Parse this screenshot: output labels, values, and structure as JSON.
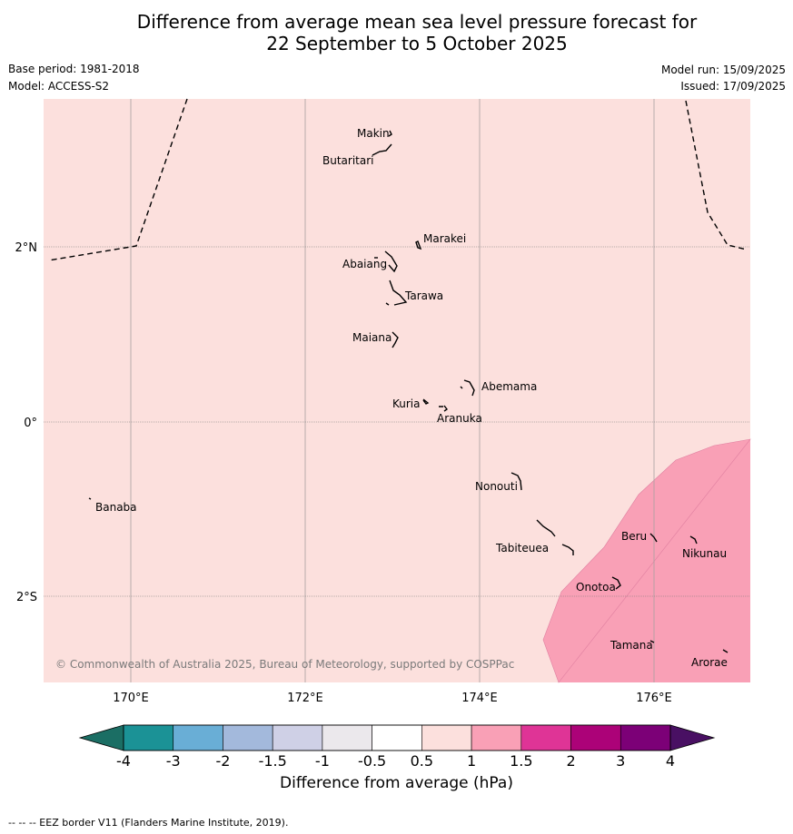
{
  "title": {
    "line1": "Difference from average mean sea level pressure forecast for",
    "line2": "22 September to 5 October 2025"
  },
  "meta": {
    "base_period": "Base period: 1981-2018",
    "model": "Model: ACCESS-S2",
    "model_run": "Model run: 15/09/2025",
    "issued": "Issued: 17/09/2025"
  },
  "map": {
    "background_category": "0.5 to 1 hPa",
    "region_category": "1 to 1.5 hPa",
    "lat_labels": [
      "2°N",
      "0°",
      "2°S"
    ],
    "lon_labels": [
      "170°E",
      "172°E",
      "174°E",
      "176°E"
    ],
    "places": {
      "makin": "Makin",
      "butaritari": "Butaritari",
      "marakei": "Marakei",
      "abaiang": "Abaiang",
      "tarawa": "Tarawa",
      "maiana": "Maiana",
      "abemama": "Abemama",
      "kuria": "Kuria",
      "aranuka": "Aranuka",
      "nonouti": "Nonouti",
      "banaba": "Banaba",
      "beru": "Beru",
      "nikunau": "Nikunau",
      "tabiteuea": "Tabiteuea",
      "onotoa": "Onotoa",
      "tamana": "Tamana",
      "arorae": "Arorae"
    },
    "copyright": "© Commonwealth of Australia 2025, Bureau of Meteorology, supported by COSPPac"
  },
  "colorbar": {
    "title": "Difference from average (hPa)",
    "ticks": [
      "-4",
      "-3",
      "-2",
      "-1.5",
      "-1",
      "-0.5",
      "0.5",
      "1",
      "1.5",
      "2",
      "3",
      "4"
    ],
    "colors": [
      "#1b6e64",
      "#1b9296",
      "#69aed6",
      "#a3b9dc",
      "#cfd0e6",
      "#ebe8ec",
      "#ffffff",
      "#fce0dd",
      "#f9a0b6",
      "#df3496",
      "#ac0278",
      "#7c0077",
      "#491063"
    ]
  },
  "footer": "--  --  -- EEZ border V11 (Flanders Marine Institute, 2019)."
}
